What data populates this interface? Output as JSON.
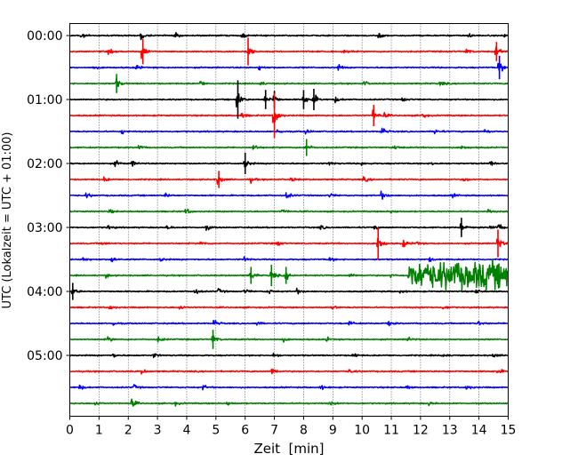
{
  "chart_data": {
    "type": "line",
    "title": "",
    "xlabel": "Zeit  [min]",
    "ylabel": "UTC (Lokalzeit = UTC + 01:00)",
    "xlim": [
      0,
      15
    ],
    "x_ticks": [
      "0",
      "1",
      "2",
      "3",
      "4",
      "5",
      "6",
      "7",
      "8",
      "9",
      "10",
      "11",
      "12",
      "13",
      "14",
      "15"
    ],
    "y_tick_labels": [
      "00:00",
      "01:00",
      "02:00",
      "03:00",
      "04:00",
      "05:00"
    ],
    "trace_interval_min": 15,
    "x_grid": "dotted vertical lines at every minute",
    "colors": [
      "#000000",
      "#ff0000",
      "#0000ff",
      "#008000"
    ],
    "traces": [
      {
        "start": "00:00",
        "color": "#000000",
        "events": [
          [
            0.4,
            0.45
          ],
          [
            2.45,
            0.7
          ],
          [
            3.6,
            0.5
          ],
          [
            5.9,
            0.45
          ],
          [
            10.6,
            0.45
          ],
          [
            13.65,
            0.6
          ],
          [
            14.9,
            0.4
          ]
        ]
      },
      {
        "start": "00:15",
        "color": "#ff0000",
        "events": [
          [
            1.35,
            0.45
          ],
          [
            2.5,
            1.2
          ],
          [
            6.1,
            1.3
          ],
          [
            9.4,
            0.4
          ],
          [
            13.6,
            0.45
          ],
          [
            14.6,
            0.9
          ]
        ]
      },
      {
        "start": "00:30",
        "color": "#0000ff",
        "events": [
          [
            0.8,
            0.4
          ],
          [
            2.3,
            0.45
          ],
          [
            6.5,
            0.45
          ],
          [
            9.2,
            0.45
          ],
          [
            14.7,
            1.1
          ]
        ]
      },
      {
        "start": "00:45",
        "color": "#008000",
        "events": [
          [
            1.6,
            0.9
          ],
          [
            4.5,
            0.45
          ],
          [
            6.5,
            0.45
          ],
          [
            10.1,
            0.4
          ],
          [
            12.7,
            0.4
          ]
        ]
      },
      {
        "start": "01:00",
        "color": "#000000",
        "events": [
          [
            5.75,
            1.8
          ],
          [
            6.7,
            0.9
          ],
          [
            7.0,
            0.8
          ],
          [
            8.0,
            0.9
          ],
          [
            8.35,
            1.0
          ],
          [
            9.1,
            0.5
          ],
          [
            11.4,
            0.4
          ]
        ]
      },
      {
        "start": "01:15",
        "color": "#ff0000",
        "events": [
          [
            5.9,
            0.45
          ],
          [
            7.0,
            2.1
          ],
          [
            10.4,
            1.0
          ],
          [
            10.75,
            0.5
          ],
          [
            12.1,
            0.4
          ]
        ]
      },
      {
        "start": "01:30",
        "color": "#0000ff",
        "events": [
          [
            1.8,
            0.4
          ],
          [
            7.1,
            0.5
          ],
          [
            8.1,
            0.45
          ],
          [
            10.7,
            0.7
          ],
          [
            12.5,
            0.6
          ],
          [
            14.2,
            0.4
          ]
        ]
      },
      {
        "start": "01:45",
        "color": "#008000",
        "events": [
          [
            2.4,
            0.4
          ],
          [
            6.3,
            0.6
          ],
          [
            8.1,
            0.8
          ],
          [
            11.1,
            0.4
          ],
          [
            13.4,
            0.4
          ]
        ]
      },
      {
        "start": "02:00",
        "color": "#000000",
        "events": [
          [
            1.55,
            0.6
          ],
          [
            2.15,
            0.45
          ],
          [
            6.0,
            1.0
          ],
          [
            8.9,
            0.4
          ],
          [
            10.0,
            0.4
          ],
          [
            12.4,
            0.4
          ],
          [
            14.4,
            0.45
          ]
        ]
      },
      {
        "start": "02:15",
        "color": "#ff0000",
        "events": [
          [
            1.2,
            0.4
          ],
          [
            5.1,
            0.8
          ],
          [
            6.2,
            0.45
          ],
          [
            7.6,
            0.4
          ],
          [
            10.1,
            0.4
          ],
          [
            13.5,
            0.4
          ]
        ]
      },
      {
        "start": "02:30",
        "color": "#0000ff",
        "events": [
          [
            0.6,
            0.4
          ],
          [
            3.3,
            0.4
          ],
          [
            7.45,
            0.5
          ],
          [
            8.9,
            0.4
          ],
          [
            10.7,
            0.65
          ],
          [
            13.1,
            0.4
          ]
        ]
      },
      {
        "start": "02:45",
        "color": "#008000",
        "events": [
          [
            1.35,
            0.4
          ],
          [
            4.0,
            0.55
          ],
          [
            7.3,
            0.4
          ],
          [
            11.0,
            0.4
          ],
          [
            14.3,
            0.4
          ]
        ]
      },
      {
        "start": "03:00",
        "color": "#000000",
        "events": [
          [
            1.3,
            0.45
          ],
          [
            3.35,
            0.4
          ],
          [
            4.7,
            0.4
          ],
          [
            8.6,
            0.4
          ],
          [
            10.4,
            0.45
          ],
          [
            13.4,
            0.9
          ],
          [
            14.4,
            0.45
          ],
          [
            14.7,
            0.6
          ]
        ]
      },
      {
        "start": "03:15",
        "color": "#ff0000",
        "events": [
          [
            1.1,
            0.4
          ],
          [
            4.5,
            0.45
          ],
          [
            7.1,
            0.45
          ],
          [
            10.55,
            1.5
          ],
          [
            11.45,
            0.6
          ],
          [
            11.85,
            0.4
          ],
          [
            14.65,
            1.3
          ]
        ]
      },
      {
        "start": "03:30",
        "color": "#0000ff",
        "events": [
          [
            0.5,
            0.45
          ],
          [
            1.45,
            0.6
          ],
          [
            3.1,
            0.4
          ],
          [
            6.0,
            0.4
          ],
          [
            8.9,
            0.4
          ],
          [
            12.3,
            0.4
          ]
        ]
      },
      {
        "start": "03:45",
        "color": "#008000",
        "events": [
          [
            1.25,
            0.4
          ],
          [
            6.2,
            0.8
          ],
          [
            6.9,
            1.0
          ],
          [
            7.4,
            0.8
          ],
          [
            9.6,
            0.4
          ],
          [
            11.0,
            0.4
          ]
        ],
        "burst": [
          11.55,
          15.0,
          1.3
        ]
      },
      {
        "start": "04:00",
        "color": "#000000",
        "events": [
          [
            0.1,
            0.8
          ],
          [
            4.3,
            0.5
          ],
          [
            5.1,
            0.4
          ],
          [
            6.0,
            0.4
          ],
          [
            6.8,
            0.45
          ],
          [
            7.8,
            0.45
          ],
          [
            11.3,
            0.4
          ],
          [
            13.9,
            0.45
          ]
        ]
      },
      {
        "start": "04:15",
        "color": "#ff0000",
        "events": [
          [
            1.4,
            0.4
          ],
          [
            3.8,
            0.4
          ],
          [
            9.0,
            0.4
          ],
          [
            12.8,
            0.4
          ]
        ]
      },
      {
        "start": "04:30",
        "color": "#0000ff",
        "events": [
          [
            1.5,
            0.4
          ],
          [
            4.95,
            0.65
          ],
          [
            6.4,
            0.4
          ],
          [
            9.6,
            0.4
          ],
          [
            10.9,
            0.4
          ],
          [
            14.0,
            0.4
          ]
        ]
      },
      {
        "start": "04:45",
        "color": "#008000",
        "events": [
          [
            1.3,
            0.5
          ],
          [
            3.05,
            0.5
          ],
          [
            4.9,
            0.9
          ],
          [
            7.3,
            0.4
          ],
          [
            8.8,
            0.4
          ],
          [
            11.6,
            0.4
          ]
        ]
      },
      {
        "start": "05:00",
        "color": "#000000",
        "events": [
          [
            1.5,
            0.4
          ],
          [
            2.9,
            0.4
          ],
          [
            7.0,
            0.4
          ],
          [
            9.7,
            0.55
          ],
          [
            12.75,
            0.5
          ],
          [
            14.5,
            0.4
          ]
        ]
      },
      {
        "start": "05:15",
        "color": "#ff0000",
        "events": [
          [
            2.5,
            0.4
          ],
          [
            6.95,
            0.7
          ],
          [
            9.6,
            0.4
          ],
          [
            14.65,
            0.55
          ]
        ]
      },
      {
        "start": "05:30",
        "color": "#0000ff",
        "events": [
          [
            0.35,
            0.45
          ],
          [
            2.2,
            0.4
          ],
          [
            4.6,
            0.4
          ],
          [
            8.6,
            0.4
          ],
          [
            11.5,
            0.4
          ],
          [
            13.6,
            0.45
          ]
        ]
      },
      {
        "start": "05:45",
        "color": "#008000",
        "events": [
          [
            0.9,
            0.4
          ],
          [
            2.15,
            0.7
          ],
          [
            3.6,
            0.4
          ],
          [
            5.4,
            0.4
          ],
          [
            8.9,
            0.4
          ],
          [
            12.3,
            0.4
          ]
        ]
      }
    ]
  }
}
